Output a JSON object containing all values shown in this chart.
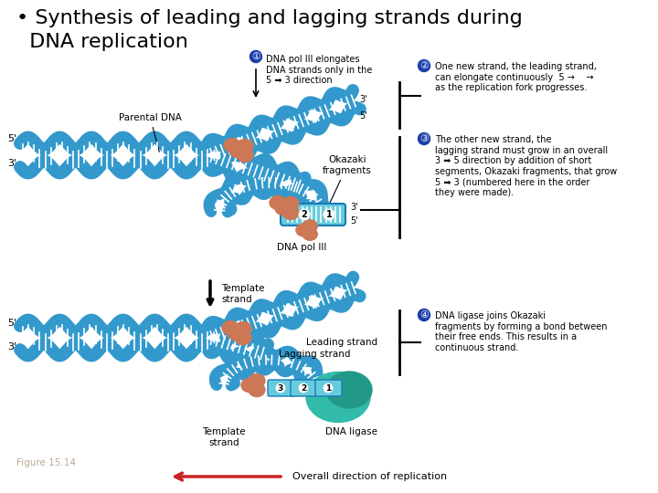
{
  "bg_color": "#ffffff",
  "title_line1": "• Synthesis of leading and lagging strands during",
  "title_line2": "  DNA replication",
  "title_fontsize": 16,
  "title_color": "#000000",
  "ann1_circle": "①",
  "ann1_text": "DNA pol III elongates\nDNA strands only in the\n5 ➡ 3 direction",
  "ann2_circle": "②",
  "ann2_text": "One new strand, the leading strand,\ncan elongate continuously  5 →    →\nas the replication fork progresses.",
  "ann3_circle": "③",
  "ann3_text": "The other new strand, the\nlagging strand must grow in an overall\n3 ➡ 5 direction by addition of short\nsegments, Okazaki fragments, that grow\n5 ➡ 3 (numbered here in the order\nthey were made).",
  "ann4_circle": "④",
  "ann4_text": "DNA ligase joins Okazaki\nfragments by forming a bond between\ntheir free ends. This results in a\ncontinuous strand.",
  "circle_color": "#1a3faa",
  "circle_text_color": "#ffffff",
  "dna_blue": "#3399CC",
  "dna_blue2": "#1a7ab5",
  "dna_tooth_color": "#ffffff",
  "polymerase_color": "#CC7755",
  "teal_color": "#33BBAA",
  "okazaki_color": "#66CCDD",
  "figure_label": "Figure 15.14",
  "figure_label_color": "#BBAA99",
  "overall_text": "Overall direction of replication",
  "arrow_color": "#CC2222",
  "label_parental": "Parental DNA",
  "label_okazaki": "Okazaki\nfragments",
  "label_dnapol": "DNA pol III",
  "label_template1": "Template\nstrand",
  "label_leading": "Leading strand",
  "label_lagging": "Lagging strand",
  "label_template2": "Template\nstrand",
  "label_ligase": "DNA ligase"
}
